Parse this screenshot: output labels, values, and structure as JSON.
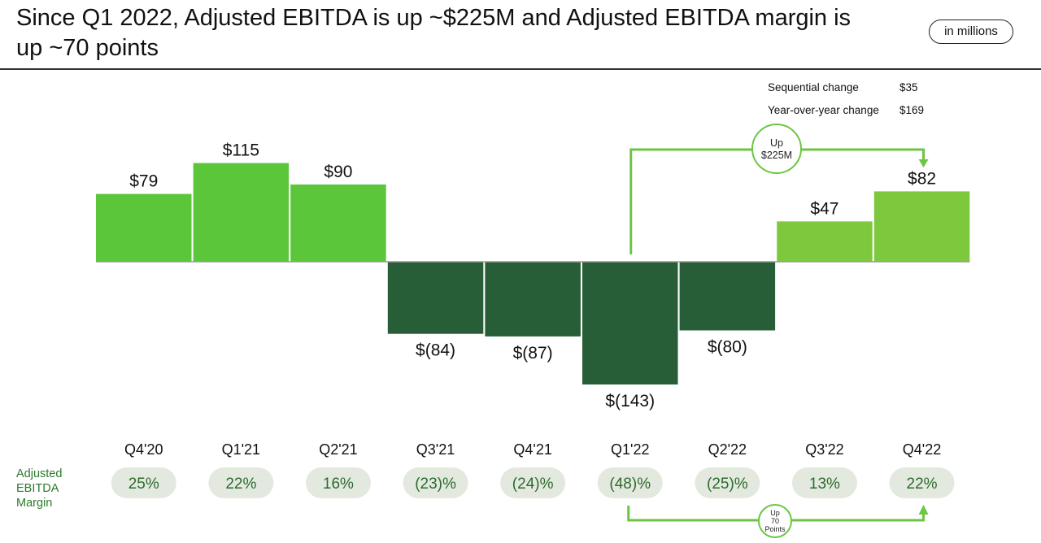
{
  "header": {
    "title": "Since Q1 2022, Adjusted EBITDA is up ~$225M and Adjusted EBITDA margin is up ~70 points",
    "units": "in millions"
  },
  "summary": [
    {
      "label": "Sequential change",
      "value": "$35"
    },
    {
      "label": "Year-over-year change",
      "value": "$169"
    }
  ],
  "chart_data": {
    "type": "bar",
    "title": "Adjusted EBITDA",
    "unit": "in millions",
    "categories": [
      "Q4'20",
      "Q1'21",
      "Q2'21",
      "Q3'21",
      "Q4'21",
      "Q1'22",
      "Q2'22",
      "Q3'22",
      "Q4'22"
    ],
    "values": [
      79,
      115,
      90,
      -84,
      -87,
      -143,
      -80,
      47,
      82
    ],
    "value_labels": [
      "$79",
      "$115",
      "$90",
      "$(84)",
      "$(87)",
      "$(143)",
      "$(80)",
      "$47",
      "$82"
    ],
    "ylim": [
      -143,
      115
    ],
    "margin_row": {
      "label": "Adjusted EBITDA Margin",
      "values": [
        "25%",
        "22%",
        "16%",
        "(23)%",
        "(24)%",
        "(48)%",
        "(25)%",
        "13%",
        "22%"
      ]
    },
    "annotations": {
      "ebitda": {
        "text": [
          "Up",
          "$225M"
        ],
        "from": "Q1'22",
        "to": "Q4'22"
      },
      "margin": {
        "text": [
          "Up",
          "70",
          "Points"
        ],
        "from": "Q1'22",
        "to": "Q4'22"
      }
    }
  },
  "colors": {
    "positive_early": "#5cc63b",
    "positive_recent": "#7ec83e",
    "negative": "#275e37",
    "accent": "#6cc644",
    "pill_bg": "#e4e9e0",
    "margin_label": "#2a7a2a"
  }
}
